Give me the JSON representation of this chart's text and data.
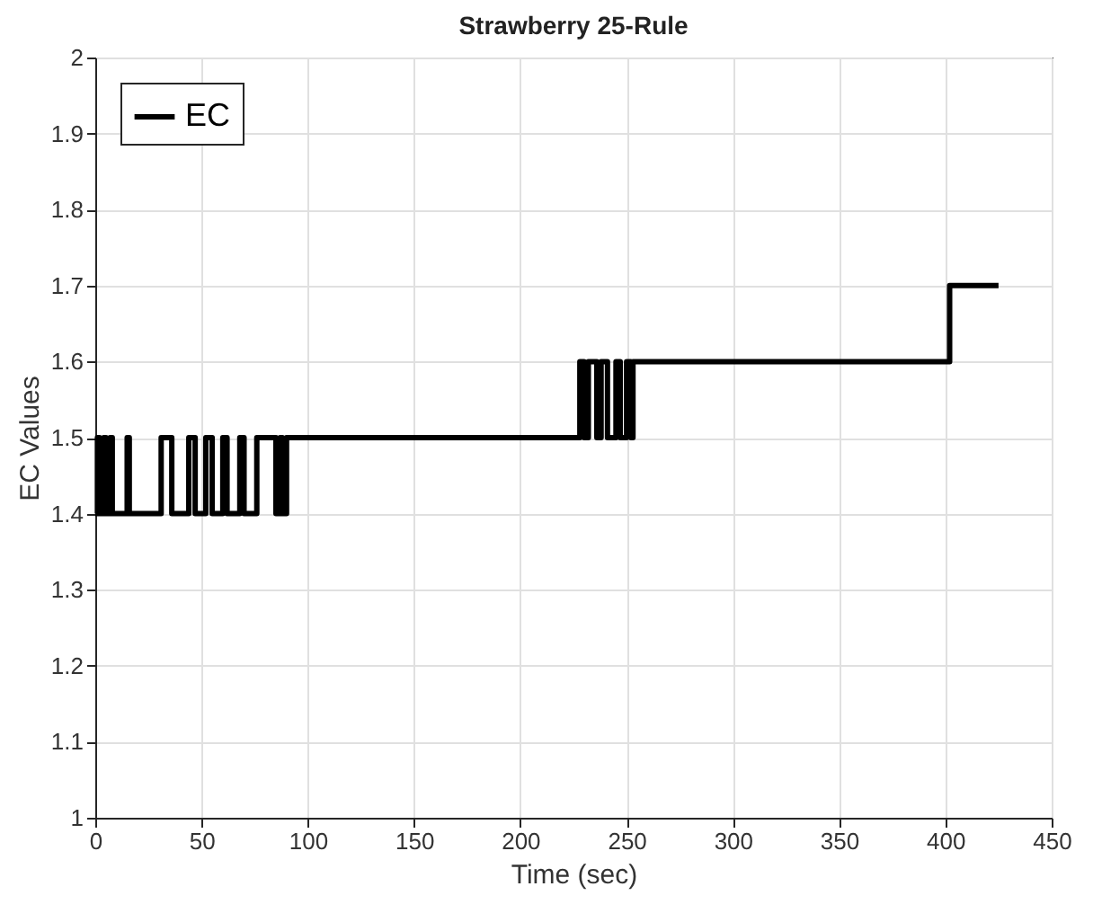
{
  "chart_data": {
    "type": "step",
    "title": "Strawberry 25-Rule",
    "xlabel": "Time (sec)",
    "ylabel": "EC Values",
    "xlim": [
      0,
      450
    ],
    "xticks": [
      0,
      50,
      100,
      150,
      200,
      250,
      300,
      350,
      400,
      450
    ],
    "ylim": [
      1,
      2
    ],
    "yticks": [
      1,
      1.1,
      1.2,
      1.3,
      1.4,
      1.5,
      1.6,
      1.7,
      1.8,
      1.9,
      2
    ],
    "grid": true,
    "legend": "top left",
    "line_style": "solid",
    "x": [
      0,
      1,
      2,
      4,
      5,
      7,
      8,
      15,
      16,
      31,
      36,
      44,
      47,
      52,
      55,
      60,
      62,
      68,
      70,
      76,
      85,
      87,
      88,
      90,
      228,
      230,
      232,
      236,
      238,
      241,
      245,
      247,
      250,
      252,
      253,
      402,
      425
    ],
    "series": [
      {
        "name": "EC",
        "color": "#000000",
        "values": [
          1.4,
          1.5,
          1.4,
          1.5,
          1.4,
          1.5,
          1.4,
          1.5,
          1.4,
          1.5,
          1.4,
          1.5,
          1.4,
          1.5,
          1.4,
          1.5,
          1.4,
          1.5,
          1.4,
          1.5,
          1.4,
          1.5,
          1.4,
          1.5,
          1.6,
          1.5,
          1.6,
          1.5,
          1.6,
          1.5,
          1.6,
          1.5,
          1.6,
          1.5,
          1.6,
          1.7,
          1.7
        ]
      }
    ]
  }
}
